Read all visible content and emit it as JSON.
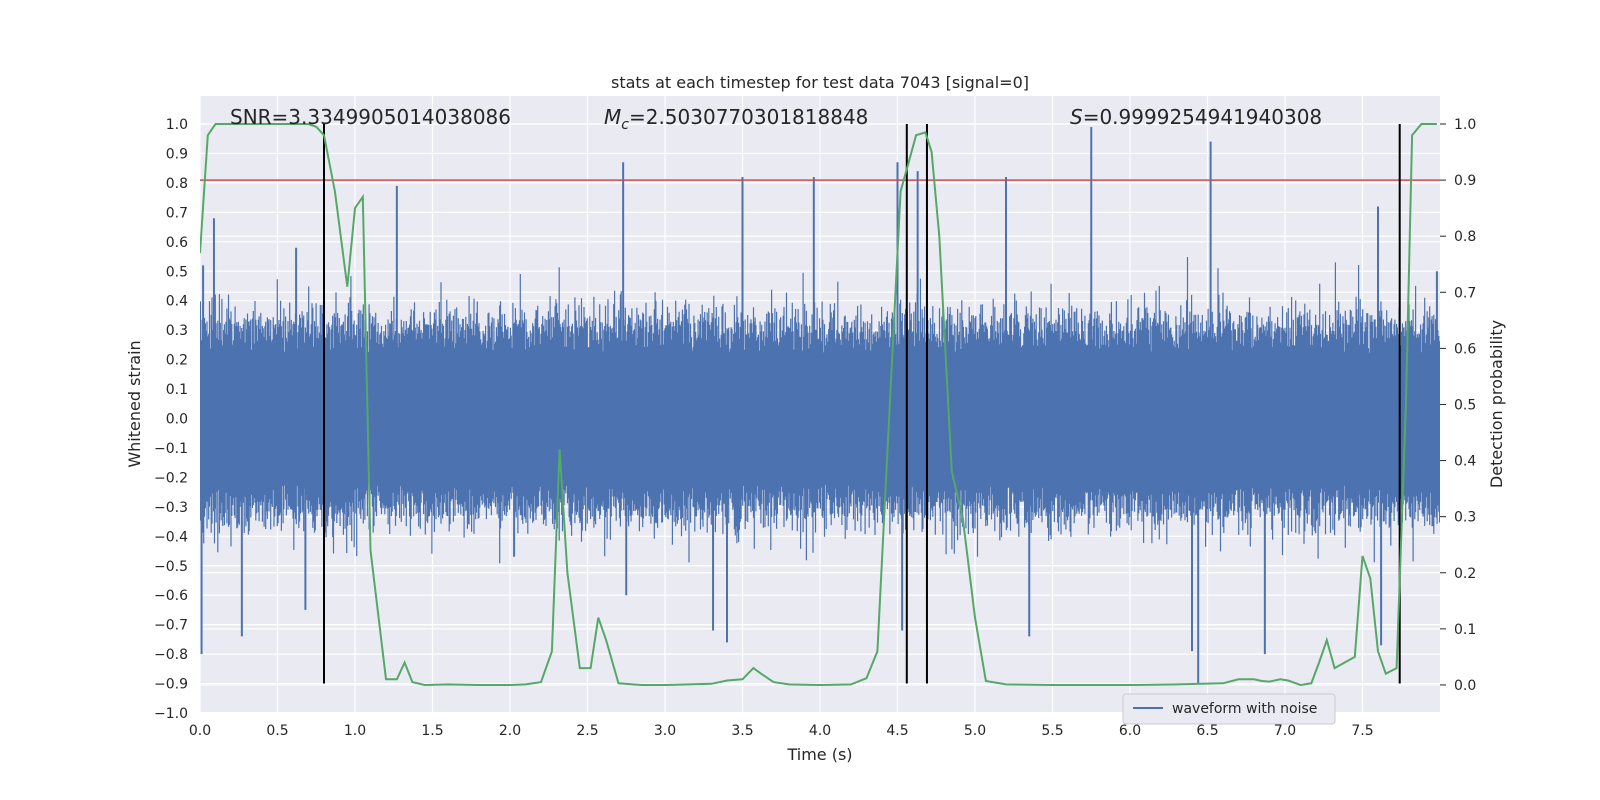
{
  "chart_data": {
    "type": "line",
    "title": "stats at each timestep for test data 7043 [signal=0]",
    "xlabel": "Time (s)",
    "ylabel": "Whitened strain",
    "y2label": "Detection probability",
    "xlim": [
      0.0,
      8.0
    ],
    "ylim": [
      -1.0,
      1.0
    ],
    "y2lim": [
      -0.05,
      1.0
    ],
    "xticks": [
      "0.0",
      "0.5",
      "1.0",
      "1.5",
      "2.0",
      "2.5",
      "3.0",
      "3.5",
      "4.0",
      "4.5",
      "5.0",
      "5.5",
      "6.0",
      "6.5",
      "7.0",
      "7.5"
    ],
    "yticks": [
      "1.0",
      "0.9",
      "0.8",
      "0.7",
      "0.6",
      "0.5",
      "0.4",
      "0.3",
      "0.2",
      "0.1",
      "0.0",
      "−0.1",
      "−0.2",
      "−0.3",
      "−0.4",
      "−0.5",
      "−0.6",
      "−0.7",
      "−0.8",
      "−0.9",
      "−1.0"
    ],
    "y2ticks": [
      "1.0",
      "0.9",
      "0.8",
      "0.7",
      "0.6",
      "0.5",
      "0.4",
      "0.3",
      "0.2",
      "0.1",
      "0.0"
    ],
    "annotations": {
      "snr": "SNR=3.3349905014038086",
      "mc_symbol": "M",
      "mc_sub": "c",
      "mc_value": "=2.5030770301818848",
      "s_symbol": "S",
      "s_value": "=0.9999254941940308"
    },
    "legend": {
      "label": "waveform with noise",
      "location": "lower-right"
    },
    "threshold": {
      "value": 0.9,
      "axis": "y2",
      "color": "#c44e52"
    },
    "vlines": [
      0.8,
      4.56,
      4.69,
      7.74
    ],
    "vline_range": [
      -0.9,
      1.0
    ],
    "colors": {
      "waveform": "#4c72b0",
      "probability": "#55a868",
      "threshold": "#c44e52",
      "vline": "#000000",
      "background": "#eaeaf2",
      "grid": "#ffffff"
    },
    "waveform": {
      "name": "waveform with noise",
      "spikes": [
        {
          "t": 0.01,
          "v": -0.8
        },
        {
          "t": 0.02,
          "v": 0.52
        },
        {
          "t": 0.09,
          "v": 0.68
        },
        {
          "t": 0.27,
          "v": -0.74
        },
        {
          "t": 0.62,
          "v": 0.58
        },
        {
          "t": 0.68,
          "v": -0.65
        },
        {
          "t": 1.27,
          "v": 0.79
        },
        {
          "t": 2.73,
          "v": 0.87
        },
        {
          "t": 2.75,
          "v": -0.6
        },
        {
          "t": 3.31,
          "v": -0.72
        },
        {
          "t": 3.4,
          "v": -0.76
        },
        {
          "t": 3.5,
          "v": 0.82
        },
        {
          "t": 3.96,
          "v": 0.82
        },
        {
          "t": 4.5,
          "v": 0.87
        },
        {
          "t": 4.53,
          "v": -0.72
        },
        {
          "t": 4.63,
          "v": 0.84
        },
        {
          "t": 5.2,
          "v": 0.82
        },
        {
          "t": 5.35,
          "v": -0.74
        },
        {
          "t": 5.75,
          "v": 0.99
        },
        {
          "t": 6.4,
          "v": -0.79
        },
        {
          "t": 6.44,
          "v": -0.9
        },
        {
          "t": 6.52,
          "v": 0.94
        },
        {
          "t": 6.87,
          "v": -0.8
        },
        {
          "t": 7.6,
          "v": 0.72
        },
        {
          "t": 7.62,
          "v": -0.77
        },
        {
          "t": 7.98,
          "v": 0.5
        }
      ]
    },
    "probability": {
      "name": "detection probability",
      "x": [
        0.0,
        0.05,
        0.1,
        0.2,
        0.3,
        0.4,
        0.5,
        0.6,
        0.7,
        0.75,
        0.8,
        0.87,
        0.95,
        1.0,
        1.05,
        1.1,
        1.2,
        1.27,
        1.32,
        1.37,
        1.45,
        1.6,
        1.8,
        2.0,
        2.1,
        2.2,
        2.27,
        2.32,
        2.37,
        2.45,
        2.52,
        2.57,
        2.62,
        2.7,
        2.85,
        3.0,
        3.3,
        3.4,
        3.5,
        3.57,
        3.62,
        3.7,
        3.8,
        4.0,
        4.2,
        4.3,
        4.37,
        4.45,
        4.52,
        4.57,
        4.62,
        4.68,
        4.72,
        4.77,
        4.85,
        4.92,
        5.0,
        5.07,
        5.2,
        5.5,
        6.0,
        6.3,
        6.6,
        6.7,
        6.8,
        6.85,
        6.9,
        6.97,
        7.02,
        7.1,
        7.17,
        7.22,
        7.27,
        7.32,
        7.45,
        7.5,
        7.55,
        7.6,
        7.65,
        7.72,
        7.78,
        7.82,
        7.88,
        7.94,
        7.98
      ],
      "y": [
        0.77,
        0.98,
        1.0,
        1.0,
        1.0,
        1.0,
        1.0,
        1.0,
        1.0,
        0.995,
        0.98,
        0.88,
        0.71,
        0.85,
        0.87,
        0.24,
        0.01,
        0.01,
        0.04,
        0.005,
        0.0,
        0.001,
        0.0,
        0.0,
        0.001,
        0.005,
        0.06,
        0.42,
        0.2,
        0.03,
        0.03,
        0.12,
        0.08,
        0.003,
        0.0,
        0.0,
        0.002,
        0.008,
        0.01,
        0.03,
        0.02,
        0.005,
        0.001,
        0.0,
        0.001,
        0.012,
        0.06,
        0.5,
        0.88,
        0.93,
        0.98,
        0.985,
        0.95,
        0.8,
        0.38,
        0.3,
        0.12,
        0.007,
        0.001,
        0.0,
        0.0,
        0.001,
        0.003,
        0.01,
        0.01,
        0.007,
        0.006,
        0.01,
        0.008,
        0.0,
        0.003,
        0.04,
        0.08,
        0.03,
        0.05,
        0.23,
        0.19,
        0.06,
        0.02,
        0.03,
        0.5,
        0.98,
        1.0,
        1.0,
        1.0
      ]
    }
  }
}
